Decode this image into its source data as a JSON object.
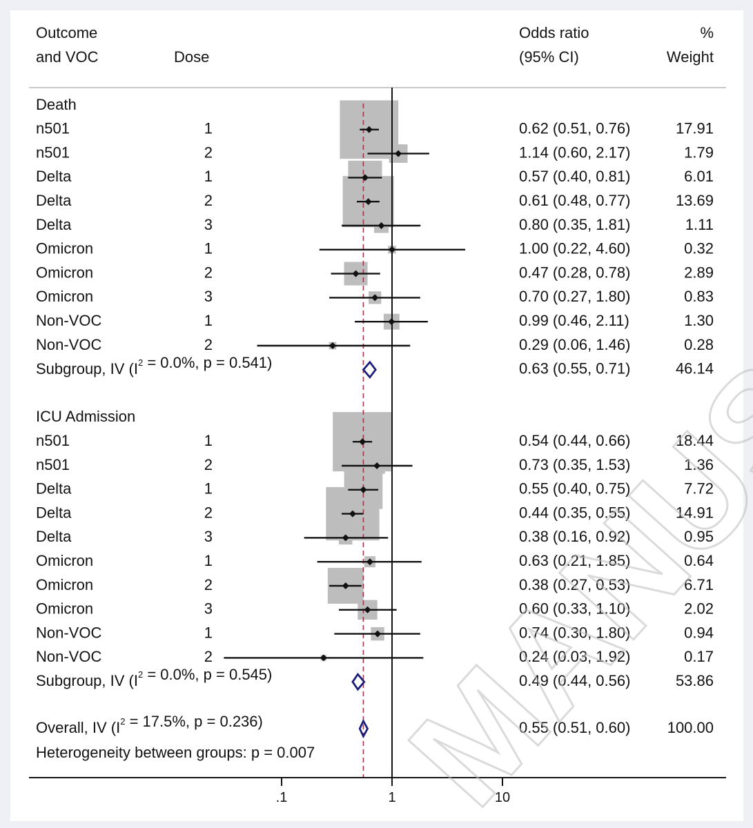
{
  "header": {
    "col1_line1": "Outcome",
    "col1_line2": "and VOC",
    "col2": "Dose",
    "col3_line1": "Odds ratio",
    "col3_line2": "(95% CI)",
    "col4_line1": "%",
    "col4_line2": "Weight"
  },
  "watermark": "MANUSC",
  "chart_data": {
    "type": "forest",
    "xscale": "log",
    "xticks": [
      ".1",
      "1",
      "10"
    ],
    "xlim": [
      0.0361,
      30.5
    ],
    "reference_line": 1,
    "overall_estimate_line": 0.55,
    "groups": [
      {
        "title": "Death",
        "rows": [
          {
            "voc": "n501",
            "dose": "1",
            "or": 0.62,
            "lo": 0.51,
            "hi": 0.76,
            "text": "0.62 (0.51, 0.76)",
            "weight": "17.91"
          },
          {
            "voc": "n501",
            "dose": "2",
            "or": 1.14,
            "lo": 0.6,
            "hi": 2.17,
            "text": "1.14 (0.60, 2.17)",
            "weight": "1.79"
          },
          {
            "voc": "Delta",
            "dose": "1",
            "or": 0.57,
            "lo": 0.4,
            "hi": 0.81,
            "text": "0.57 (0.40, 0.81)",
            "weight": "6.01"
          },
          {
            "voc": "Delta",
            "dose": "2",
            "or": 0.61,
            "lo": 0.48,
            "hi": 0.77,
            "text": "0.61 (0.48, 0.77)",
            "weight": "13.69"
          },
          {
            "voc": "Delta",
            "dose": "3",
            "or": 0.8,
            "lo": 0.35,
            "hi": 1.81,
            "text": "0.80 (0.35, 1.81)",
            "weight": "1.11"
          },
          {
            "voc": "Omicron",
            "dose": "1",
            "or": 1.0,
            "lo": 0.22,
            "hi": 4.6,
            "text": "1.00 (0.22, 4.60)",
            "weight": "0.32"
          },
          {
            "voc": "Omicron",
            "dose": "2",
            "or": 0.47,
            "lo": 0.28,
            "hi": 0.78,
            "text": "0.47 (0.28, 0.78)",
            "weight": "2.89"
          },
          {
            "voc": "Omicron",
            "dose": "3",
            "or": 0.7,
            "lo": 0.27,
            "hi": 1.8,
            "text": "0.70 (0.27, 1.80)",
            "weight": "0.83"
          },
          {
            "voc": "Non-VOC",
            "dose": "1",
            "or": 0.99,
            "lo": 0.46,
            "hi": 2.11,
            "text": "0.99 (0.46, 2.11)",
            "weight": "1.30"
          },
          {
            "voc": "Non-VOC",
            "dose": "2",
            "or": 0.29,
            "lo": 0.06,
            "hi": 1.46,
            "text": "0.29 (0.06, 1.46)",
            "weight": "0.28"
          }
        ],
        "subgroup": {
          "label": "Subgroup, IV (I² = 0.0%, p = 0.541)",
          "or": 0.63,
          "lo": 0.55,
          "hi": 0.71,
          "text": "0.63 (0.55, 0.71)",
          "weight": "46.14"
        }
      },
      {
        "title": "ICU Admission",
        "rows": [
          {
            "voc": "n501",
            "dose": "1",
            "or": 0.54,
            "lo": 0.44,
            "hi": 0.66,
            "text": "0.54 (0.44, 0.66)",
            "weight": "18.44"
          },
          {
            "voc": "n501",
            "dose": "2",
            "or": 0.73,
            "lo": 0.35,
            "hi": 1.53,
            "text": "0.73 (0.35, 1.53)",
            "weight": "1.36"
          },
          {
            "voc": "Delta",
            "dose": "1",
            "or": 0.55,
            "lo": 0.4,
            "hi": 0.75,
            "text": "0.55 (0.40, 0.75)",
            "weight": "7.72"
          },
          {
            "voc": "Delta",
            "dose": "2",
            "or": 0.44,
            "lo": 0.35,
            "hi": 0.55,
            "text": "0.44 (0.35, 0.55)",
            "weight": "14.91"
          },
          {
            "voc": "Delta",
            "dose": "3",
            "or": 0.38,
            "lo": 0.16,
            "hi": 0.92,
            "text": "0.38 (0.16, 0.92)",
            "weight": "0.95"
          },
          {
            "voc": "Omicron",
            "dose": "1",
            "or": 0.63,
            "lo": 0.21,
            "hi": 1.85,
            "text": "0.63 (0.21, 1.85)",
            "weight": "0.64"
          },
          {
            "voc": "Omicron",
            "dose": "2",
            "or": 0.38,
            "lo": 0.27,
            "hi": 0.53,
            "text": "0.38 (0.27, 0.53)",
            "weight": "6.71"
          },
          {
            "voc": "Omicron",
            "dose": "3",
            "or": 0.6,
            "lo": 0.33,
            "hi": 1.1,
            "text": "0.60 (0.33, 1.10)",
            "weight": "2.02"
          },
          {
            "voc": "Non-VOC",
            "dose": "1",
            "or": 0.74,
            "lo": 0.3,
            "hi": 1.8,
            "text": "0.74 (0.30, 1.80)",
            "weight": "0.94"
          },
          {
            "voc": "Non-VOC",
            "dose": "2",
            "or": 0.24,
            "lo": 0.03,
            "hi": 1.92,
            "text": "0.24 (0.03, 1.92)",
            "weight": "0.17"
          }
        ],
        "subgroup": {
          "label": "Subgroup, IV (I² = 0.0%, p = 0.545)",
          "or": 0.49,
          "lo": 0.44,
          "hi": 0.56,
          "text": "0.49 (0.44, 0.56)",
          "weight": "53.86"
        }
      }
    ],
    "overall": {
      "label": "Overall, IV (I² = 17.5%, p = 0.236)",
      "or": 0.55,
      "lo": 0.51,
      "hi": 0.6,
      "text": "0.55 (0.51, 0.60)",
      "weight": "100.00"
    },
    "heterogeneity": "Heterogeneity between groups: p = 0.007"
  }
}
